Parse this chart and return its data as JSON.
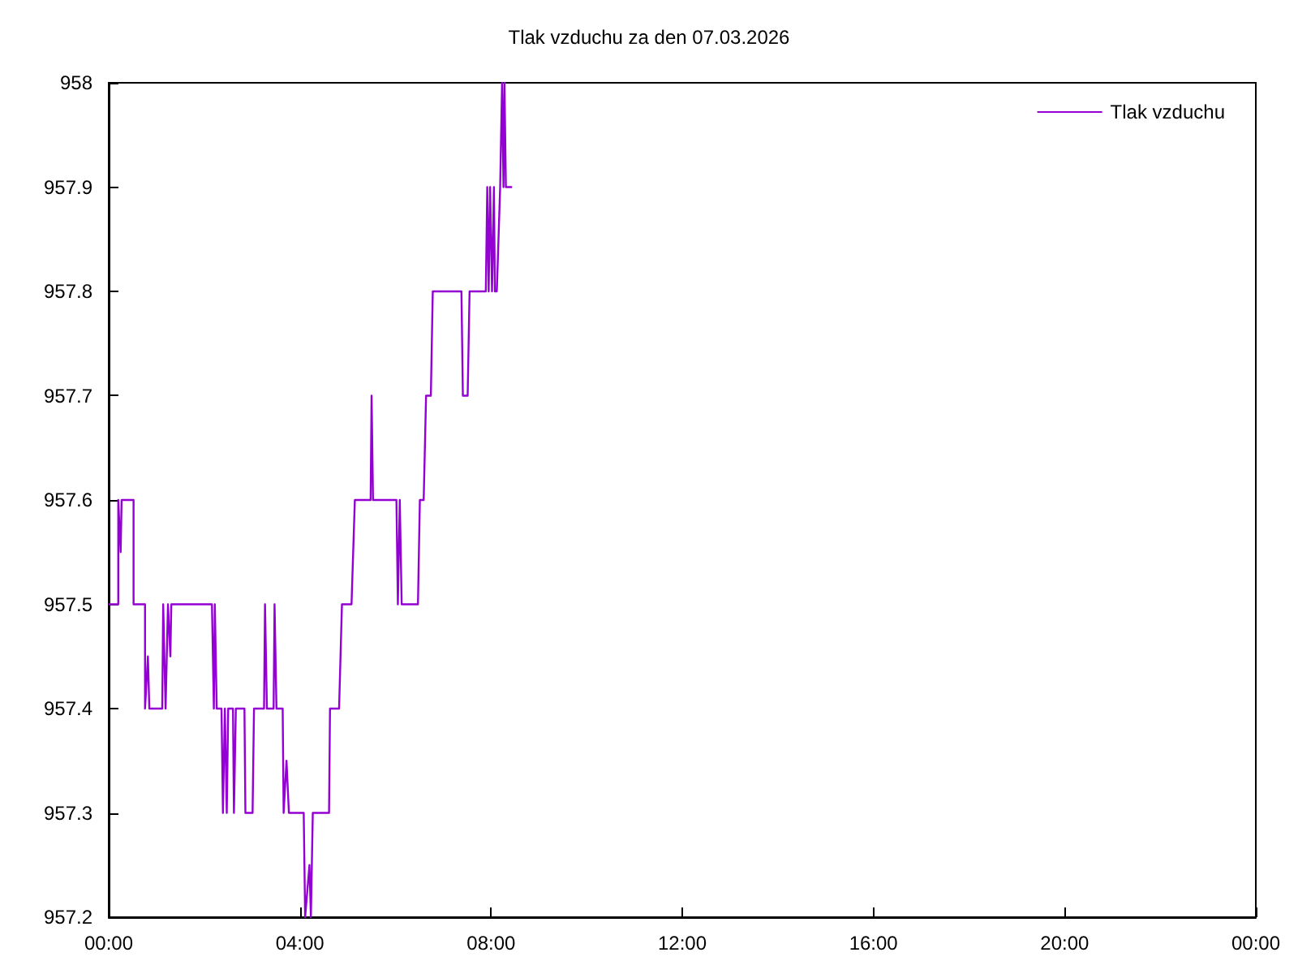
{
  "chart_data": {
    "type": "line",
    "title": "Tlak vzduchu za den 07.03.2026",
    "xlim": [
      0,
      24
    ],
    "xticks": [
      {
        "value": 0,
        "label": "00:00"
      },
      {
        "value": 4,
        "label": "04:00"
      },
      {
        "value": 8,
        "label": "08:00"
      },
      {
        "value": 12,
        "label": "12:00"
      },
      {
        "value": 16,
        "label": "16:00"
      },
      {
        "value": 20,
        "label": "20:00"
      },
      {
        "value": 24,
        "label": "00:00"
      }
    ],
    "ylim": [
      957.2,
      958
    ],
    "yticks": [
      957.2,
      957.3,
      957.4,
      957.5,
      957.6,
      957.7,
      957.8,
      957.9,
      958
    ],
    "grid": false,
    "legend": "top right",
    "marker": "none",
    "line_style": "solid",
    "series": [
      {
        "name": "Tlak vzduchu",
        "color": "#9400d3",
        "x": [
          0.0,
          0.2,
          0.2,
          0.25,
          0.27,
          0.52,
          0.52,
          0.76,
          0.76,
          0.82,
          0.85,
          1.12,
          1.14,
          1.19,
          1.24,
          1.29,
          1.31,
          2.16,
          2.2,
          2.22,
          2.26,
          2.36,
          2.39,
          2.43,
          2.47,
          2.5,
          2.6,
          2.62,
          2.66,
          2.84,
          2.86,
          3.01,
          3.04,
          3.25,
          3.27,
          3.31,
          3.45,
          3.47,
          3.51,
          3.64,
          3.66,
          3.72,
          3.77,
          4.08,
          4.11,
          4.2,
          4.23,
          4.27,
          4.61,
          4.63,
          4.82,
          4.88,
          5.08,
          5.15,
          5.48,
          5.5,
          5.53,
          6.02,
          6.05,
          6.09,
          6.13,
          6.47,
          6.51,
          6.59,
          6.64,
          6.74,
          6.78,
          7.38,
          7.41,
          7.51,
          7.55,
          7.89,
          7.92,
          7.95,
          7.98,
          8.02,
          8.06,
          8.08,
          8.12,
          8.19,
          8.23,
          8.26,
          8.28,
          8.31,
          8.44
        ],
        "values": [
          957.5,
          957.5,
          957.6,
          957.55,
          957.6,
          957.6,
          957.5,
          957.5,
          957.4,
          957.45,
          957.4,
          957.4,
          957.5,
          957.4,
          957.5,
          957.45,
          957.5,
          957.5,
          957.4,
          957.5,
          957.4,
          957.4,
          957.3,
          957.4,
          957.3,
          957.4,
          957.4,
          957.3,
          957.4,
          957.4,
          957.3,
          957.3,
          957.4,
          957.4,
          957.5,
          957.4,
          957.4,
          957.5,
          957.4,
          957.4,
          957.3,
          957.35,
          957.3,
          957.3,
          957.2,
          957.25,
          957.2,
          957.3,
          957.3,
          957.4,
          957.4,
          957.5,
          957.5,
          957.6,
          957.6,
          957.7,
          957.6,
          957.6,
          957.5,
          957.6,
          957.5,
          957.5,
          957.6,
          957.6,
          957.7,
          957.7,
          957.8,
          957.8,
          957.7,
          957.7,
          957.8,
          957.8,
          957.9,
          957.8,
          957.9,
          957.8,
          957.9,
          957.8,
          957.8,
          957.9,
          958,
          957.9,
          958,
          957.9,
          957.9
        ]
      }
    ]
  }
}
